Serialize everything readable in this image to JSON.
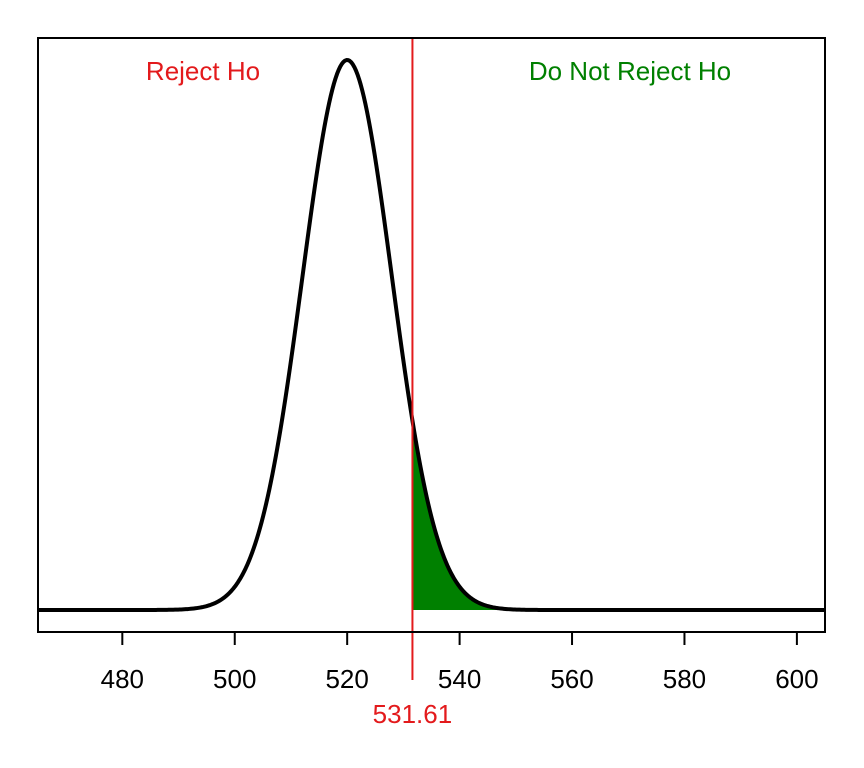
{
  "chart_data": {
    "type": "area",
    "title": "",
    "xlabel": "",
    "ylabel": "",
    "xlim": [
      465,
      605
    ],
    "x_ticks": [
      480,
      500,
      520,
      540,
      560,
      580,
      600
    ],
    "x_tick_labels": [
      "480",
      "500",
      "520",
      "540",
      "560",
      "580",
      "600"
    ],
    "y_axis_shown": false,
    "grid": false,
    "distribution": {
      "kind": "normal",
      "mean": 520,
      "sd": 7.95
    },
    "critical_value": 531.61,
    "critical_value_label": "531.61",
    "shaded_region": {
      "from": 531.61,
      "to": 605,
      "side": "upper"
    },
    "annotations": {
      "reject": "Reject Ho",
      "not_reject": "Do Not Reject Ho"
    },
    "colors": {
      "curve": "#000000",
      "critical_line": "#e31a1c",
      "reject_text": "#e31a1c",
      "not_reject_text": "#008000",
      "shade": "#008000"
    }
  }
}
